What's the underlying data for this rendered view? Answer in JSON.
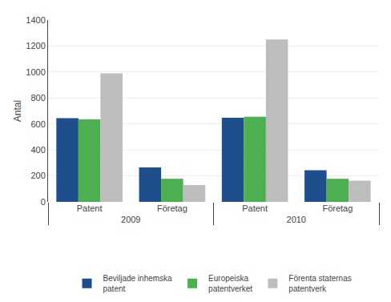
{
  "chart_data": {
    "type": "bar",
    "y_label": "Antal",
    "categories": [
      "Patent",
      "Företag",
      "Patent",
      "Företag"
    ],
    "category_groups": [
      "2009",
      "2009",
      "2010",
      "2010"
    ],
    "series": [
      {
        "name": "Beviljade inhemska\npatent",
        "color": "#1f4e8c",
        "values": [
          645,
          265,
          648,
          243
        ]
      },
      {
        "name": "Europeiska\npatentverket",
        "color": "#4caf50",
        "values": [
          635,
          178,
          655,
          178
        ]
      },
      {
        "name": "Förenta staternas\npatentverk",
        "color": "#bdbdbd",
        "values": [
          990,
          130,
          1250,
          163
        ]
      }
    ],
    "ylim": [
      0,
      1400
    ],
    "yticks": [
      0,
      200,
      400,
      600,
      800,
      1000,
      1200,
      1400
    ],
    "grid": true,
    "legend": "bottom"
  }
}
